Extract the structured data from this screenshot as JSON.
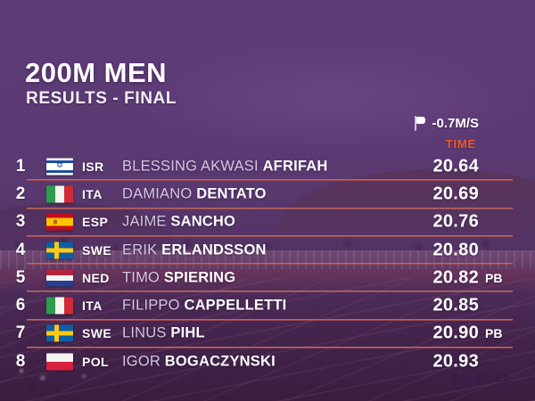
{
  "header": {
    "title": "200M MEN",
    "subtitle": "RESULTS - FINAL",
    "wind_value": "-0.7M/S",
    "time_column_label": "TIME"
  },
  "colors": {
    "overlay_purple": "#5d3b75",
    "accent_orange": "#ee5a2e",
    "separator_red": "#9a3942",
    "dim_name_text": "#d4c8e0",
    "primary_text": "#ffffff"
  },
  "results": {
    "rows": [
      {
        "rank": "1",
        "flag": "isr",
        "country_code": "ISR",
        "first_name": "BLESSING AKWASI",
        "last_name": "AFRIFAH",
        "time": "20.64",
        "note": ""
      },
      {
        "rank": "2",
        "flag": "ita",
        "country_code": "ITA",
        "first_name": "DAMIANO",
        "last_name": "DENTATO",
        "time": "20.69",
        "note": ""
      },
      {
        "rank": "3",
        "flag": "esp",
        "country_code": "ESP",
        "first_name": "JAIME",
        "last_name": "SANCHO",
        "time": "20.76",
        "note": ""
      },
      {
        "rank": "4",
        "flag": "swe",
        "country_code": "SWE",
        "first_name": "ERIK",
        "last_name": "ERLANDSSON",
        "time": "20.80",
        "note": ""
      },
      {
        "rank": "5",
        "flag": "ned",
        "country_code": "NED",
        "first_name": "TIMO",
        "last_name": "SPIERING",
        "time": "20.82",
        "note": "PB"
      },
      {
        "rank": "6",
        "flag": "ita",
        "country_code": "ITA",
        "first_name": "FILIPPO",
        "last_name": "CAPPELLETTI",
        "time": "20.85",
        "note": ""
      },
      {
        "rank": "7",
        "flag": "swe",
        "country_code": "SWE",
        "first_name": "LINUS",
        "last_name": "PIHL",
        "time": "20.90",
        "note": "PB"
      },
      {
        "rank": "8",
        "flag": "pol",
        "country_code": "POL",
        "first_name": "IGOR",
        "last_name": "BOGACZYNSKI",
        "time": "20.93",
        "note": ""
      }
    ]
  },
  "watermark": "20:41:52"
}
